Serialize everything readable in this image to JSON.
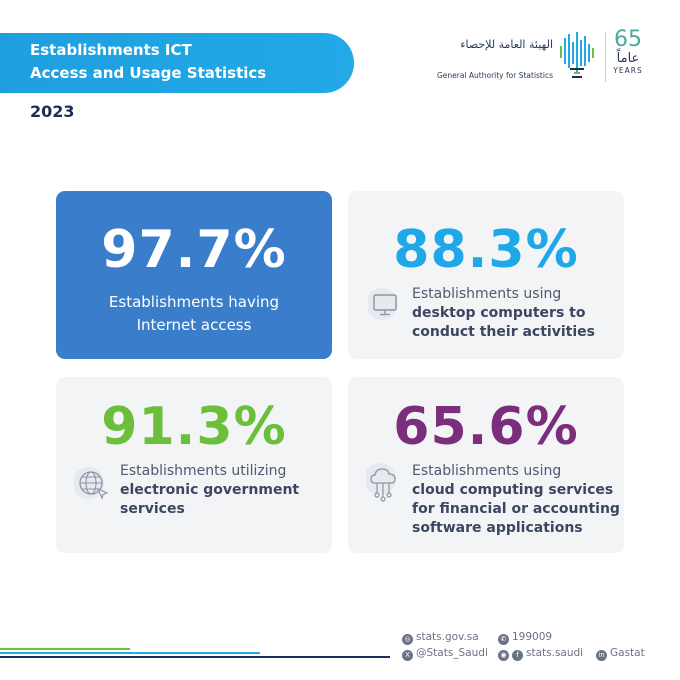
{
  "header": {
    "title_line1": "Establishments ICT",
    "title_line2": "Access and Usage Statistics",
    "year": "2023"
  },
  "logo": {
    "org_name_ar": "الهيئة العامة للإحصاء",
    "org_name_en": "General Authority for Statistics",
    "anniversary_number": "65",
    "anniversary_ar": "عاماً",
    "anniversary_en": "YEARS"
  },
  "stats": [
    {
      "value": "97.7%",
      "line1": "Establishments having",
      "line2": "Internet access",
      "line3": "",
      "line4": "",
      "color": "#ffffff",
      "icon": "none"
    },
    {
      "value": "88.3%",
      "line1": "Establishments using",
      "line2": "desktop computers to",
      "line3": "conduct their activities",
      "line4": "",
      "color": "#1ea8e8",
      "icon": "desktop-computer-icon"
    },
    {
      "value": "91.3%",
      "line1": "Establishments utilizing",
      "line2": "electronic government",
      "line3": "services",
      "line4": "",
      "color": "#6cbf3a",
      "icon": "globe-cursor-icon"
    },
    {
      "value": "65.6%",
      "line1": "Establishments using",
      "line2": "cloud computing services",
      "line3": "for financial or accounting",
      "line4": "software applications",
      "color": "#7a2e7c",
      "icon": "cloud-network-icon"
    }
  ],
  "footer": {
    "website": "stats.gov.sa",
    "phone": "199009",
    "twitter": "@Stats_Saudi",
    "social": "stats.saudi",
    "linkedin": "Gastat"
  },
  "colors": {
    "header_blue": "#22a9e6",
    "highlight_card": "#3a7ecb",
    "card_bg": "#f3f4f6"
  }
}
